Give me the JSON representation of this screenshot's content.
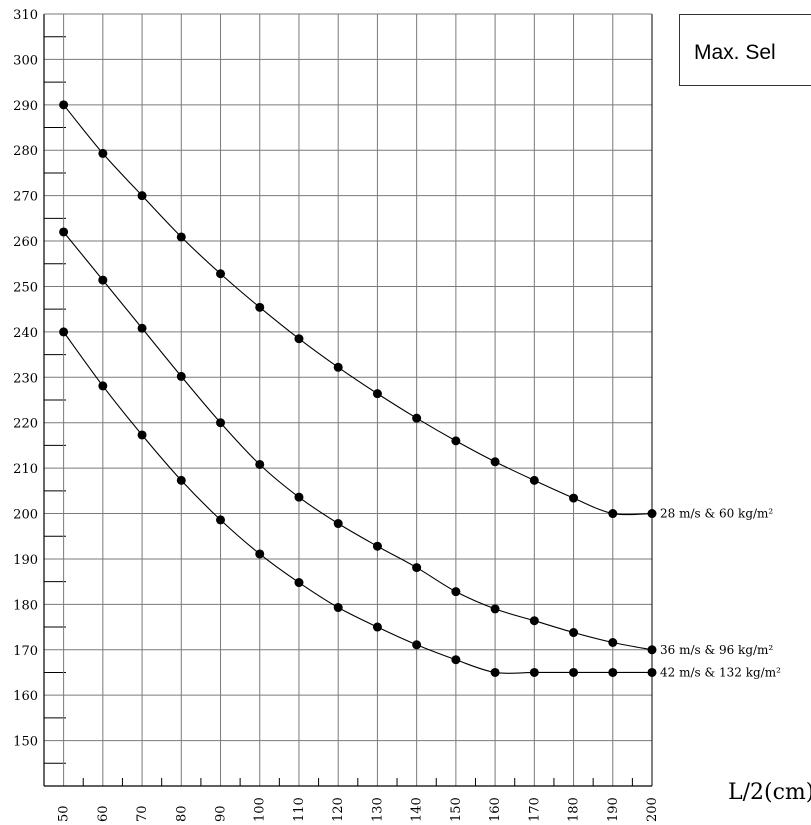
{
  "chart_data": {
    "type": "line",
    "title": "Max. Sel",
    "xlabel": "L/2(cm)",
    "ylabel": "",
    "x": [
      50,
      60,
      70,
      80,
      90,
      100,
      110,
      120,
      130,
      140,
      150,
      160,
      170,
      180,
      190,
      200
    ],
    "xlim": [
      45,
      200
    ],
    "ylim": [
      140,
      310
    ],
    "y_ticks": [
      150,
      160,
      170,
      180,
      190,
      200,
      210,
      220,
      230,
      240,
      250,
      260,
      270,
      280,
      290,
      300,
      310
    ],
    "x_ticks": [
      50,
      60,
      70,
      80,
      90,
      100,
      110,
      120,
      130,
      140,
      150,
      160,
      170,
      180,
      190,
      200
    ],
    "grid": true,
    "series": [
      {
        "name": "28 m/s  & 60 kg/m²",
        "values": [
          290,
          279.3,
          270,
          260.9,
          252.8,
          245.4,
          238.5,
          232.2,
          226.4,
          221,
          216,
          211.4,
          207.3,
          203.4,
          200,
          200
        ]
      },
      {
        "name": "36 m/s  & 96 kg/m²",
        "values": [
          262,
          251.4,
          240.8,
          230.2,
          220,
          210.8,
          203.6,
          197.8,
          192.8,
          188.1,
          182.8,
          179,
          176.4,
          173.8,
          171.6,
          170
        ]
      },
      {
        "name": "42 m/s  & 132 kg/m²",
        "values": [
          240,
          228.1,
          217.3,
          207.3,
          198.6,
          191.1,
          184.8,
          179.3,
          175,
          171.1,
          167.8,
          165,
          165,
          165,
          165,
          165
        ]
      }
    ]
  }
}
